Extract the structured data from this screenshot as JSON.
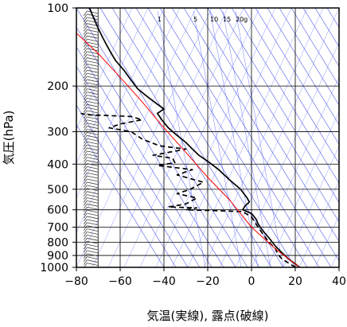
{
  "chart_data": {
    "type": "line",
    "title": "",
    "xlabel": "気温(実線), 露点(破線)",
    "ylabel": "気圧(hPa)",
    "xlim": [
      -80,
      40
    ],
    "ylim": [
      1000,
      100
    ],
    "yscale": "log",
    "xticks": [
      -80,
      -60,
      -40,
      -20,
      0,
      20,
      40
    ],
    "xtick_labels": [
      "−80",
      "−60",
      "−40",
      "−20",
      "0",
      "20",
      "40"
    ],
    "yticks": [
      100,
      200,
      300,
      400,
      500,
      600,
      700,
      800,
      900,
      1000
    ],
    "ytick_labels": [
      "100",
      "200",
      "300",
      "400",
      "500",
      "600",
      "700",
      "800",
      "900",
      "1000"
    ],
    "mixing_ratio_labels": [
      "1",
      "5",
      "10",
      "15",
      "20g"
    ],
    "series": [
      {
        "role": "temperature",
        "color": "#000000",
        "style": "solid",
        "points": [
          [
            22,
            1000
          ],
          [
            20,
            970
          ],
          [
            17,
            930
          ],
          [
            14,
            880
          ],
          [
            11,
            830
          ],
          [
            8,
            770
          ],
          [
            5,
            720
          ],
          [
            3,
            680
          ],
          [
            2,
            650
          ],
          [
            0,
            620
          ],
          [
            -4,
            600
          ],
          [
            -3,
            580
          ],
          [
            -1,
            560
          ],
          [
            -2,
            540
          ],
          [
            -5,
            500
          ],
          [
            -10,
            460
          ],
          [
            -15,
            420
          ],
          [
            -20,
            390
          ],
          [
            -24,
            370
          ],
          [
            -27,
            350
          ],
          [
            -30,
            330
          ],
          [
            -34,
            310
          ],
          [
            -38,
            290
          ],
          [
            -41,
            270
          ],
          [
            -43,
            255
          ],
          [
            -40,
            245
          ],
          [
            -43,
            235
          ],
          [
            -46,
            225
          ],
          [
            -49,
            215
          ],
          [
            -52,
            205
          ],
          [
            -55,
            190
          ],
          [
            -58,
            175
          ],
          [
            -62,
            160
          ],
          [
            -64,
            150
          ],
          [
            -66,
            140
          ],
          [
            -68,
            130
          ],
          [
            -70,
            120
          ],
          [
            -72,
            110
          ],
          [
            -74,
            100
          ]
        ]
      },
      {
        "role": "dew-point",
        "color": "#000000",
        "style": "dashed",
        "points": [
          [
            20,
            1000
          ],
          [
            18,
            975
          ],
          [
            14,
            930
          ],
          [
            12,
            890
          ],
          [
            11,
            850
          ],
          [
            8,
            800
          ],
          [
            5,
            740
          ],
          [
            2,
            680
          ],
          [
            0,
            640
          ],
          [
            -4,
            610
          ],
          [
            -15,
            605
          ],
          [
            -30,
            600
          ],
          [
            -25,
            590
          ],
          [
            -38,
            585
          ],
          [
            -30,
            570
          ],
          [
            -25,
            540
          ],
          [
            -34,
            520
          ],
          [
            -28,
            500
          ],
          [
            -22,
            470
          ],
          [
            -34,
            440
          ],
          [
            -27,
            420
          ],
          [
            -43,
            405
          ],
          [
            -35,
            395
          ],
          [
            -36,
            380
          ],
          [
            -45,
            370
          ],
          [
            -30,
            350
          ],
          [
            -42,
            340
          ],
          [
            -50,
            320
          ],
          [
            -55,
            300
          ],
          [
            -65,
            290
          ],
          [
            -60,
            280
          ],
          [
            -50,
            270
          ],
          [
            -55,
            262
          ],
          [
            -75,
            258
          ],
          [
            -78,
            255
          ]
        ]
      },
      {
        "role": "parcel",
        "color": "#ff0000",
        "style": "solid",
        "points": [
          [
            22,
            1000
          ],
          [
            11,
            850
          ],
          [
            0,
            700
          ],
          [
            -10,
            550
          ],
          [
            -20,
            450
          ],
          [
            -30,
            360
          ],
          [
            -40,
            290
          ],
          [
            -50,
            230
          ],
          [
            -60,
            185
          ],
          [
            -70,
            150
          ],
          [
            -80,
            125
          ]
        ]
      }
    ],
    "background_colors": {
      "grid": "#000000",
      "isotherms": "#2233dd",
      "mixing_ratio": "#3344ff",
      "wind_barbs": "#444444"
    }
  }
}
